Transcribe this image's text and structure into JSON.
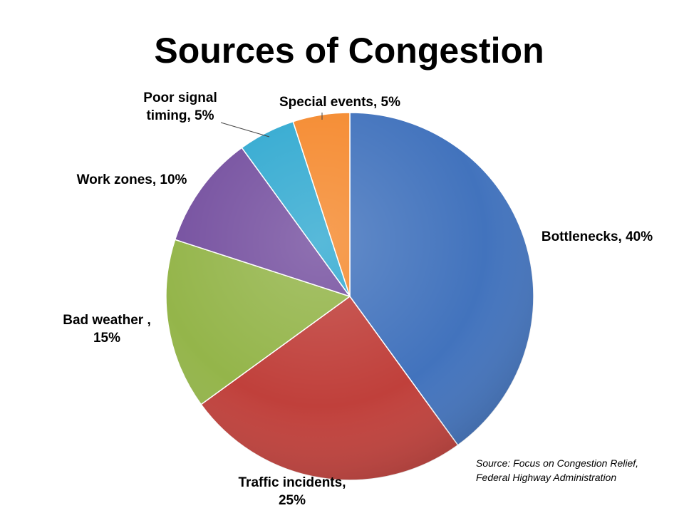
{
  "chart_data": {
    "type": "pie",
    "title": "Sources of Congestion",
    "slices": [
      {
        "label_lines": [
          "Bottlenecks, 40%"
        ],
        "value": 40,
        "color": "#4273bd"
      },
      {
        "label_lines": [
          "Traffic incidents,",
          "25%"
        ],
        "value": 25,
        "color": "#c0403b"
      },
      {
        "label_lines": [
          "Bad weather ,",
          "15%"
        ],
        "value": 15,
        "color": "#94b54a"
      },
      {
        "label_lines": [
          "Work zones, 10%"
        ],
        "value": 10,
        "color": "#7651a0"
      },
      {
        "label_lines": [
          "Poor signal",
          "timing, 5%"
        ],
        "value": 5,
        "color": "#33aad1"
      },
      {
        "label_lines": [
          "Special events, 5%"
        ],
        "value": 5,
        "color": "#f58a2f"
      }
    ],
    "start_angle_deg": 0,
    "direction": "clockwise",
    "legend": "none",
    "source_lines": [
      "Source:  Focus on Congestion Relief,",
      "Federal Highway Administration"
    ]
  }
}
